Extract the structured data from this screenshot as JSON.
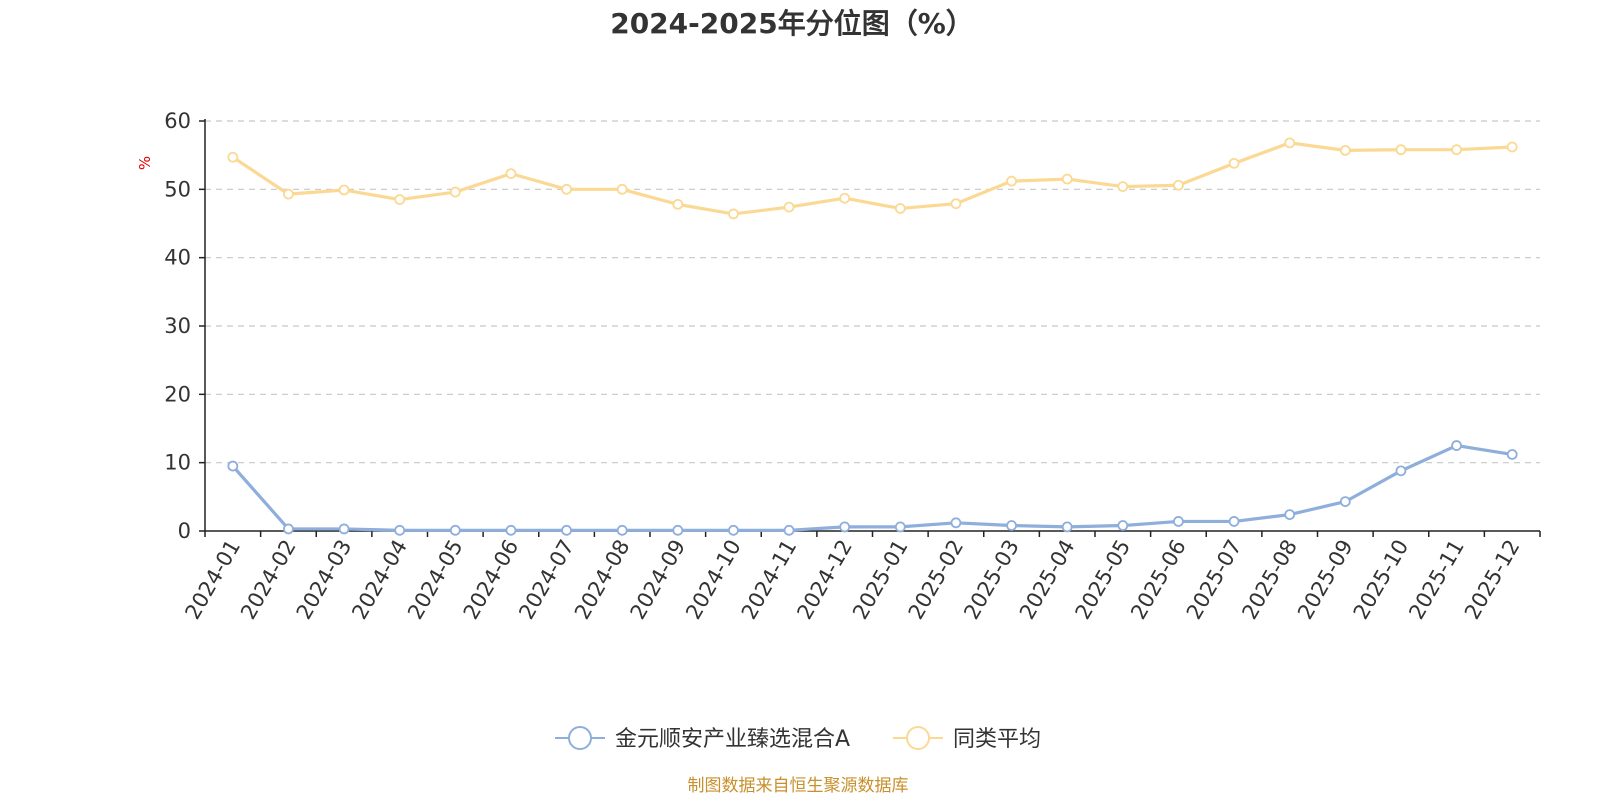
{
  "chart_data": {
    "type": "line",
    "title": "2024-2025年分位图（%）",
    "ylabel": "%",
    "xlabel": "",
    "ylim": [
      0,
      60
    ],
    "yticks": [
      0,
      10,
      20,
      30,
      40,
      50,
      60
    ],
    "grid": true,
    "legend_position": "bottom-center",
    "categories": [
      "2024-01",
      "2024-02",
      "2024-03",
      "2024-04",
      "2024-05",
      "2024-06",
      "2024-07",
      "2024-08",
      "2024-09",
      "2024-10",
      "2024-11",
      "2024-12",
      "2025-01",
      "2025-02",
      "2025-03",
      "2025-04",
      "2025-05",
      "2025-06",
      "2025-07",
      "2025-08",
      "2025-09",
      "2025-10",
      "2025-11",
      "2025-12"
    ],
    "series": [
      {
        "name": "金元顺安产业臻选混合A",
        "color": "#8eaedb",
        "values": [
          9.5,
          0.3,
          0.3,
          0.1,
          0.1,
          0.1,
          0.1,
          0.1,
          0.1,
          0.1,
          0.1,
          0.6,
          0.6,
          1.2,
          0.8,
          0.6,
          0.8,
          1.4,
          1.4,
          2.4,
          4.3,
          8.8,
          12.5,
          11.2
        ]
      },
      {
        "name": "同类平均",
        "color": "#fbd994",
        "values": [
          54.7,
          49.3,
          49.9,
          48.5,
          49.6,
          52.3,
          50.0,
          50.0,
          47.8,
          46.4,
          47.4,
          48.7,
          47.2,
          47.9,
          51.2,
          51.5,
          50.4,
          50.6,
          53.8,
          56.8,
          55.7,
          55.8,
          55.8,
          56.2
        ]
      }
    ],
    "source": "制图数据来自恒生聚源数据库"
  }
}
